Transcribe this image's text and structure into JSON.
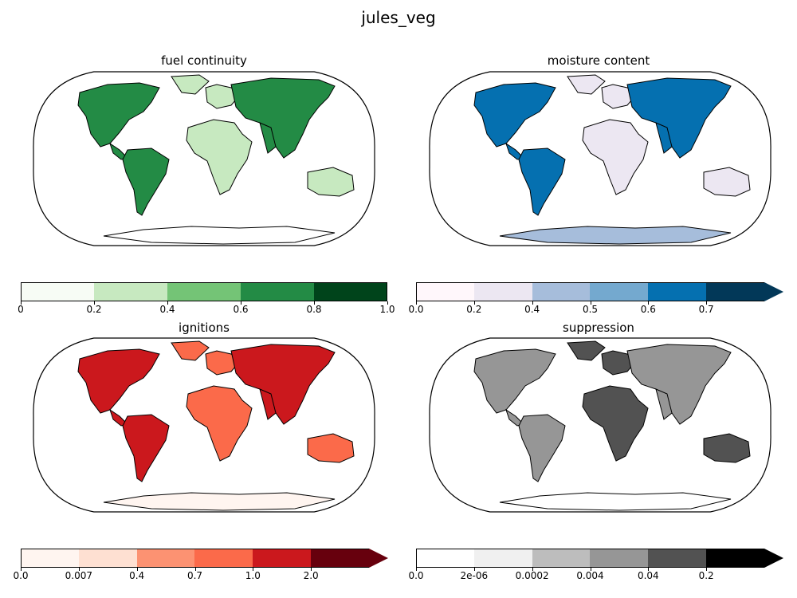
{
  "title": "jules_veg",
  "panels": [
    {
      "title": "fuel continuity",
      "colors": [
        "#f7fcf5",
        "#c7e9c0",
        "#74c476",
        "#238b45",
        "#00441b"
      ],
      "ticks": [
        "0",
        "0.2",
        "0.4",
        "0.6",
        "0.8",
        "1.0"
      ],
      "extend": false,
      "ocean": "#ffffff",
      "land_main": "#238b45",
      "land_alt": "#c7e9c0",
      "antarctica": "#ffffff"
    },
    {
      "title": "moisture content",
      "colors": [
        "#fff7fb",
        "#ece7f2",
        "#a6bddb",
        "#74a9cf",
        "#0570b0",
        "#023858"
      ],
      "ticks": [
        "0.0",
        "0.2",
        "0.4",
        "0.5",
        "0.6",
        "0.7"
      ],
      "extend": true,
      "ocean": "#ffffff",
      "land_main": "#0570b0",
      "land_alt": "#ece7f2",
      "antarctica": "#a6bddb"
    },
    {
      "title": "ignitions",
      "colors": [
        "#fff5f0",
        "#fee0d2",
        "#fc9272",
        "#fb6a4a",
        "#cb181d",
        "#67000d"
      ],
      "ticks": [
        "0.0",
        "0.007",
        "0.4",
        "0.7",
        "1.0",
        "2.0"
      ],
      "extend": true,
      "ocean": "#ffffff",
      "land_main": "#cb181d",
      "land_alt": "#fb6a4a",
      "antarctica": "#fff5f0"
    },
    {
      "title": "suppression",
      "colors": [
        "#ffffff",
        "#f0f0f0",
        "#bdbdbd",
        "#969696",
        "#525252",
        "#000000"
      ],
      "ticks": [
        "0.0",
        "2e-06",
        "0.0002",
        "0.004",
        "0.04",
        "0.2"
      ],
      "extend": true,
      "ocean": "#ffffff",
      "land_main": "#969696",
      "land_alt": "#525252",
      "antarctica": "#ffffff"
    }
  ]
}
